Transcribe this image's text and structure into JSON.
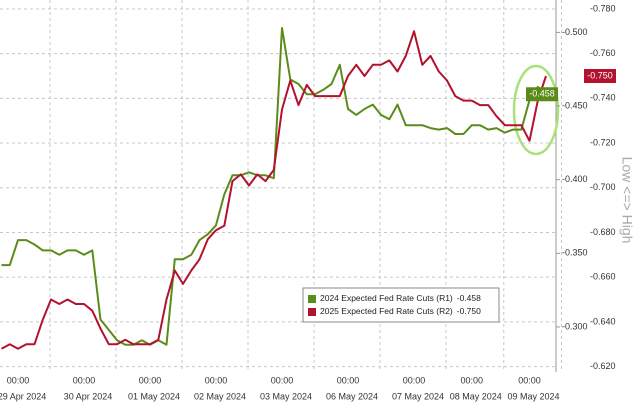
{
  "chart_data": {
    "type": "line",
    "axis_label_right": "Low <=> High",
    "xtick_time": "00:00",
    "categories": [
      null,
      null,
      "29 Apr 2024",
      null,
      null,
      null,
      null,
      null,
      null,
      null,
      "30 Apr 2024",
      null,
      null,
      null,
      null,
      null,
      null,
      null,
      "01 May 2024",
      null,
      null,
      null,
      null,
      null,
      null,
      null,
      "02 May 2024",
      null,
      null,
      null,
      null,
      null,
      null,
      null,
      "03 May 2024",
      null,
      null,
      null,
      null,
      null,
      null,
      null,
      "06 May 2024",
      null,
      null,
      null,
      null,
      null,
      null,
      null,
      "07 May 2024",
      null,
      null,
      null,
      null,
      null,
      null,
      "08 May 2024",
      null,
      null,
      null,
      null,
      null,
      null,
      "09 May 2024",
      null,
      null
    ],
    "series": [
      {
        "name": "2024 Expected Fed Rate Cuts (R1)",
        "last_label": "-0.458",
        "color": "#5b8c1a",
        "axis": "y",
        "values": [
          -0.342,
          -0.342,
          -0.359,
          -0.359,
          -0.356,
          -0.352,
          -0.352,
          -0.349,
          -0.352,
          -0.352,
          -0.349,
          -0.352,
          -0.305,
          -0.298,
          -0.291,
          -0.288,
          -0.288,
          -0.291,
          -0.288,
          -0.291,
          -0.288,
          -0.346,
          -0.346,
          -0.349,
          -0.359,
          -0.363,
          -0.369,
          -0.39,
          -0.403,
          -0.403,
          -0.405,
          -0.403,
          -0.403,
          -0.401,
          -0.503,
          -0.468,
          -0.465,
          -0.458,
          -0.458,
          -0.461,
          -0.465,
          -0.478,
          -0.448,
          -0.444,
          -0.448,
          -0.451,
          -0.444,
          -0.441,
          -0.451,
          -0.437,
          -0.437,
          -0.437,
          -0.435,
          -0.434,
          -0.435,
          -0.431,
          -0.431,
          -0.437,
          -0.437,
          -0.434,
          -0.435,
          -0.432,
          -0.434,
          -0.434,
          -0.454,
          -0.463,
          -0.458
        ]
      },
      {
        "name": "2025 Expected Fed Rate Cuts (R2)",
        "last_label": "-0.750",
        "color": "#b3122e",
        "axis": "y2",
        "values": [
          -0.628,
          -0.63,
          -0.628,
          -0.63,
          -0.63,
          -0.641,
          -0.65,
          -0.648,
          -0.65,
          -0.648,
          -0.648,
          -0.645,
          -0.637,
          -0.63,
          -0.63,
          -0.632,
          -0.63,
          -0.63,
          -0.63,
          -0.632,
          -0.65,
          -0.663,
          -0.657,
          -0.663,
          -0.668,
          -0.677,
          -0.681,
          -0.683,
          -0.703,
          -0.706,
          -0.701,
          -0.706,
          -0.703,
          -0.708,
          -0.735,
          -0.748,
          -0.737,
          -0.746,
          -0.741,
          -0.741,
          -0.741,
          -0.741,
          -0.75,
          -0.755,
          -0.75,
          -0.755,
          -0.755,
          -0.757,
          -0.752,
          -0.759,
          -0.77,
          -0.755,
          -0.759,
          -0.752,
          -0.748,
          -0.741,
          -0.739,
          -0.739,
          -0.737,
          -0.737,
          -0.732,
          -0.728,
          -0.728,
          -0.728,
          -0.721,
          -0.739,
          -0.75
        ]
      }
    ],
    "ylim": [
      -0.264,
      -0.522
    ],
    "yticks": [
      {
        "value": -0.5,
        "label": "-0.500"
      },
      {
        "value": -0.45,
        "label": "-0.450"
      },
      {
        "value": -0.4,
        "label": "-0.400"
      },
      {
        "value": -0.35,
        "label": "-0.350"
      },
      {
        "value": -0.3,
        "label": "-0.300"
      }
    ],
    "y2lim": [
      -0.614,
      -0.784
    ],
    "y2ticks": [
      {
        "value": -0.78,
        "label": "-0.780"
      },
      {
        "value": -0.76,
        "label": "-0.760"
      },
      {
        "value": -0.74,
        "label": "-0.740"
      },
      {
        "value": -0.72,
        "label": "-0.720"
      },
      {
        "value": -0.7,
        "label": "-0.700"
      },
      {
        "value": -0.68,
        "label": "-0.680"
      },
      {
        "value": -0.66,
        "label": "-0.660"
      },
      {
        "value": -0.64,
        "label": "-0.640"
      },
      {
        "value": -0.62,
        "label": "-0.620"
      }
    ],
    "grid": true
  }
}
